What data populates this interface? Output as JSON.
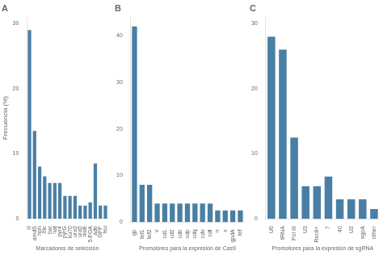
{
  "chart_data": [
    {
      "type": "bar",
      "title": "A",
      "xlabel": "Marcadores de selección",
      "ylabel": "Frecuencia (%)",
      "categories": [
        "ili",
        "amdS",
        "hph",
        "ble",
        "bar",
        "nat",
        "pyr4",
        "pyrG",
        "ku70",
        "ura3",
        "ura5",
        "hisB",
        "5-FOA",
        "ade",
        "GFP",
        "leu"
      ],
      "values": [
        29,
        13.5,
        8,
        6.5,
        5.5,
        5.5,
        5.5,
        3.5,
        3.5,
        3.5,
        2,
        2,
        2.5,
        8.5,
        2,
        2
      ],
      "color": "#4a7fa5",
      "ylim": [
        0,
        31
      ],
      "yticks": [
        0,
        10,
        20,
        30
      ],
      "grid": false
    },
    {
      "type": "bar",
      "title": "B",
      "xlabel": "Promotores para la expresión de Cas9",
      "categories": [
        "gp",
        "tef1",
        "tef2",
        "v",
        "cd1",
        "cd2",
        "cdb",
        "cdp",
        "cdq",
        "cdv",
        "cdt",
        "n",
        "s",
        "gpdA",
        "tef"
      ],
      "values": [
        42,
        8,
        8,
        4,
        4,
        4,
        4,
        4,
        4,
        4,
        4,
        2.5,
        2.5,
        2.5,
        2.5
      ],
      "color": "#4a7fa5",
      "ylim": [
        0,
        44
      ],
      "yticks": [
        0,
        10,
        20,
        30,
        40
      ],
      "grid": false
    },
    {
      "type": "bar",
      "title": "C",
      "xlabel": "Promotores para la expresión de sgRNA",
      "categories": [
        "U6",
        "tRNA",
        "Pol III",
        "U3",
        "Rec8+",
        "7",
        "40",
        "U2",
        "sgpA",
        "other"
      ],
      "values": [
        28,
        26,
        12.5,
        5,
        5,
        6.5,
        3,
        3,
        3,
        1.5
      ],
      "color": "#4a7fa5",
      "ylim": [
        0,
        31
      ],
      "yticks": [
        0,
        10,
        20,
        30
      ],
      "grid": false
    }
  ]
}
